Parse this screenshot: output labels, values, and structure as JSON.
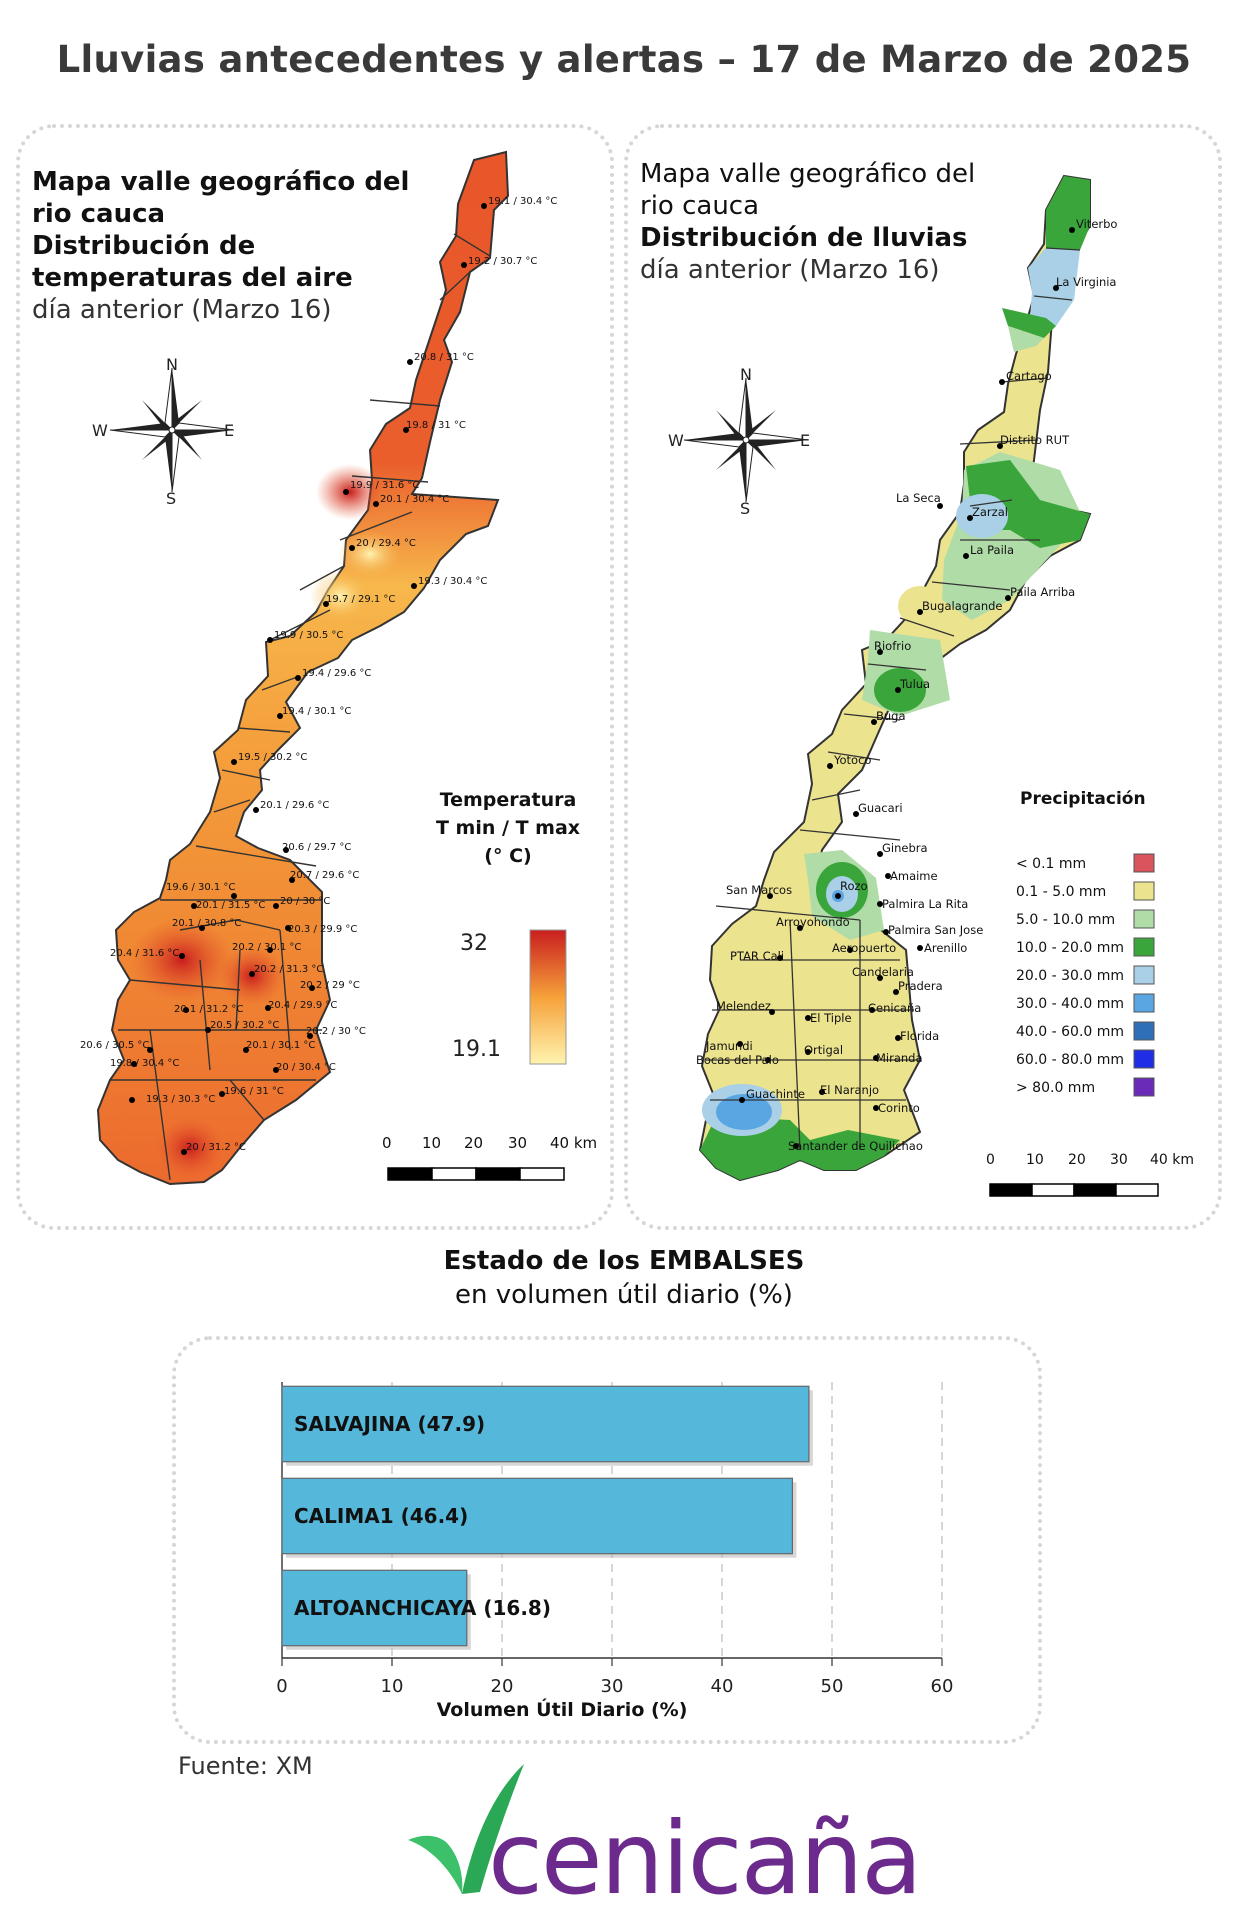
{
  "title": "Lluvias antecedentes y alertas – 17 de Marzo de 2025",
  "temp_map": {
    "title_bold": [
      "Mapa valle geográfico del",
      "rio cauca",
      "Distribución de",
      "temperaturas del aire"
    ],
    "title_normal": "día anterior (Marzo 16)",
    "compass": {
      "n": "N",
      "s": "S",
      "e": "E",
      "w": "W"
    },
    "legend_title": [
      "Temperatura",
      "T min / T max",
      "(° C)"
    ],
    "legend_max": "32",
    "legend_min": "19.1",
    "legend_colors": {
      "low": "#fff4b0",
      "mid": "#f6a13a",
      "high": "#c81e1e"
    },
    "scale_labels": [
      "0",
      "10",
      "20",
      "30",
      "40 km"
    ],
    "stations": [
      "19.1 / 30.4 °C",
      "19.2 / 30.7 °C",
      "20.8 / 31 °C",
      "19.8 / 31 °C",
      "19.9 / 31.6 °C",
      "20.1 / 30.4 °C",
      "20 / 29.4 °C",
      "19.3 / 30.4 °C",
      "19.7 / 29.1 °C",
      "19.9 / 30.5 °C",
      "19.4 / 29.6 °C",
      "19.4 / 30.1 °C",
      "19.5 / 30.2 °C",
      "20.1 / 29.6 °C",
      "20.6 / 29.7 °C",
      "19.6 / 30.1 °C",
      "20.7 / 29.6 °C",
      "20.1 / 31.5 °C",
      "20 / 30 °C",
      "20.1 / 30.8 °C",
      "20.3 / 29.9 °C",
      "20.2 / 30.1 °C",
      "20.4 / 31.6 °C",
      "20.2 / 31.3 °C",
      "20.2 / 29 °C",
      "20.4 / 29.9 °C",
      "20.1 / 31.2 °C",
      "20.2 / 30 °C",
      "20.5 / 30.2 °C",
      "20.6 / 30.5 °C",
      "20.1 / 30.1 °C",
      "19.8 / 30.4 °C",
      "20 / 30.4 °C",
      "19.3 / 30.3 °C",
      "19.6 / 31 °C",
      "20 / 31.2 °C"
    ]
  },
  "rain_map": {
    "title_normal_top": [
      "Mapa valle geográfico del",
      "rio cauca"
    ],
    "title_bold": "Distribución de lluvias",
    "title_normal": "día anterior (Marzo 16)",
    "compass": {
      "n": "N",
      "s": "S",
      "e": "E",
      "w": "W"
    },
    "legend_title": "Precipitación",
    "legend": [
      {
        "label": "< 0.1 mm",
        "color": "#d9545c"
      },
      {
        "label": "0.1 - 5.0 mm",
        "color": "#ece38e"
      },
      {
        "label": "5.0 - 10.0 mm",
        "color": "#b0dca8"
      },
      {
        "label": "10.0 - 20.0 mm",
        "color": "#3aa53a"
      },
      {
        "label": "20.0 - 30.0 mm",
        "color": "#a9d0e6"
      },
      {
        "label": "30.0 - 40.0 mm",
        "color": "#5aa6e2"
      },
      {
        "label": "40.0 - 60.0 mm",
        "color": "#2f6fb8"
      },
      {
        "label": "60.0 - 80.0 mm",
        "color": "#1f2ee6"
      },
      {
        "label": "> 80.0 mm",
        "color": "#6a2bb8"
      }
    ],
    "scale_labels": [
      "0",
      "10",
      "20",
      "30",
      "40 km"
    ],
    "places": [
      "Viterbo",
      "La Virginia",
      "Cartago",
      "Distrito RUT",
      "La Seca",
      "Zarzal",
      "La Paila",
      "Paila Arriba",
      "Bugalagrande",
      "Riofrio",
      "Tulua",
      "Buga",
      "Yotoco",
      "Guacari",
      "Ginebra",
      "Amaime",
      "San Marcos",
      "Rozo",
      "Palmira La Rita",
      "Arroyohondo",
      "Palmira San Jose",
      "Aeropuerto",
      "Arenillo",
      "PTAR Cali",
      "Candelaria",
      "Pradera",
      "Melendez",
      "Cenicaña",
      "El Tiple",
      "Florida",
      "Jamundi",
      "Bocas del Palo",
      "Ortigal",
      "Miranda",
      "Guachinte",
      "El Naranjo",
      "Corinto",
      "Santander de Quilichao"
    ]
  },
  "reservoirs": {
    "title_bold": "Estado de los EMBALSES",
    "title_normal": "en volumen útil diario (%)",
    "chart_data": {
      "type": "bar",
      "orientation": "horizontal",
      "categories": [
        "SALVAJINA (47.9)",
        "CALIMA1 (46.4)",
        "ALTOANCHICAYA (16.8)"
      ],
      "values": [
        47.9,
        46.4,
        16.8
      ],
      "xlabel": "Volumen Útil Diario (%)",
      "xlim": [
        0,
        60
      ],
      "xticks": [
        "0",
        "10",
        "20",
        "30",
        "40",
        "50",
        "60"
      ],
      "grid": true,
      "bar_color": "#55b8da"
    }
  },
  "source": "Fuente: XM",
  "logo": {
    "text": "cenicaña",
    "text_color": "#6b2a8c",
    "mark_color": "#2bb35a"
  }
}
